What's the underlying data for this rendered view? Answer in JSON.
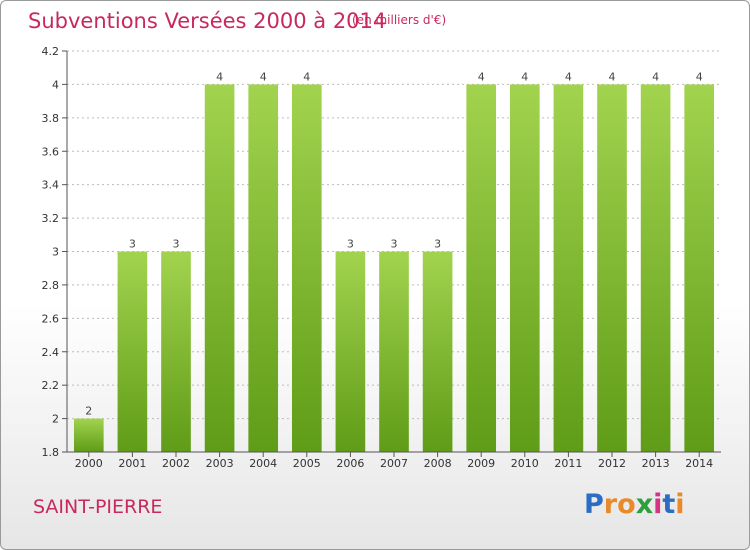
{
  "header": {
    "title": "Subventions Versées 2000 à 2014",
    "subtitle": "(en milliers d'€)"
  },
  "footer": {
    "commune": "SAINT-PIERRE",
    "logo_letters": [
      "P",
      "r",
      "o",
      "x",
      "i",
      "t",
      "i"
    ],
    "logo_colors": [
      "#2b6cc4",
      "#e8892a",
      "#e8892a",
      "#2e9e3e",
      "#d63384",
      "#2b6cc4",
      "#e8892a"
    ]
  },
  "chart_data": {
    "type": "bar",
    "title": "Subventions Versées 2000 à 2014",
    "categories": [
      "2000",
      "2001",
      "2002",
      "2003",
      "2004",
      "2005",
      "2006",
      "2007",
      "2008",
      "2009",
      "2010",
      "2011",
      "2012",
      "2013",
      "2014"
    ],
    "values": [
      2,
      3,
      3,
      4,
      4,
      4,
      3,
      3,
      3,
      4,
      4,
      4,
      4,
      4,
      4
    ],
    "data_labels": [
      "2",
      "3",
      "3",
      "4",
      "4",
      "4",
      "3",
      "3",
      "3",
      "4",
      "4",
      "4",
      "4",
      "4",
      "4"
    ],
    "yticks": [
      "1.8",
      "2",
      "2.2",
      "2.4",
      "2.6",
      "2.8",
      "3",
      "3.2",
      "3.4",
      "3.6",
      "3.8",
      "4",
      "4.2"
    ],
    "ylim": [
      1.8,
      4.2
    ],
    "bar_color_top": "#a2d34f",
    "bar_color_bottom": "#5f9c17",
    "grid": true
  }
}
